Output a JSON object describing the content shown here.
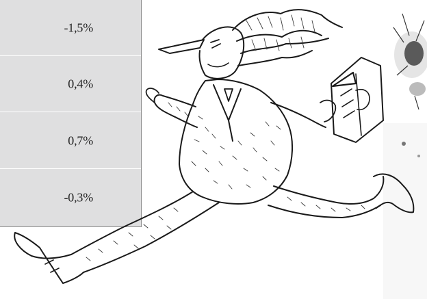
{
  "table": {
    "rows": [
      {
        "value": "-1,5%"
      },
      {
        "value": "0,4%"
      },
      {
        "value": "0,7%"
      },
      {
        "value": "-0,3%"
      }
    ]
  },
  "illustration": {
    "subject": "running-man-with-open-book-sketch",
    "splatter": "ink-splatter"
  }
}
